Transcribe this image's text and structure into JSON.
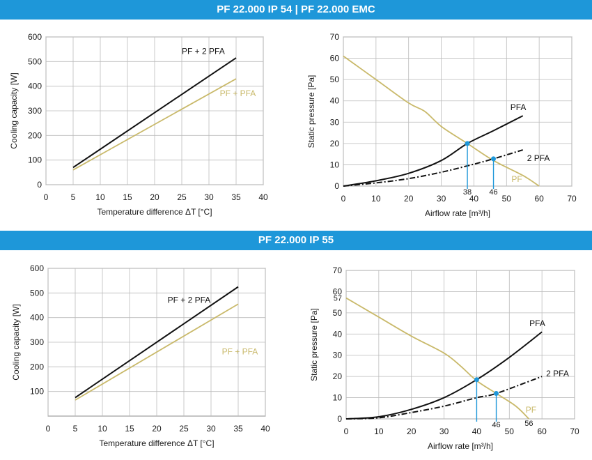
{
  "sections": {
    "top_title": "PF 22.000 IP 54 | PF 22.000 EMC",
    "bottom_title": "PF 22.000 IP 55"
  },
  "colors": {
    "banner": "#1e97d9",
    "pf2pfa": "#111111",
    "pfpfa": "#c9b96a",
    "pf_curve": "#c9b96a",
    "marker": "#1e97d9",
    "grid": "#bbbbbb"
  },
  "chart_data": [
    {
      "type": "line",
      "ylabel": "Cooling capacity [W]",
      "xlabel": "Temperature difference ΔT [°C]",
      "xlim": [
        0,
        40
      ],
      "ylim": [
        0,
        600
      ],
      "xticks": [
        "0",
        "5",
        "10",
        "15",
        "20",
        "25",
        "30",
        "35",
        "40"
      ],
      "yticks": [
        "0",
        "100",
        "200",
        "300",
        "400",
        "500",
        "600"
      ],
      "grid": true,
      "series": [
        {
          "name": "PF + 2 PFA",
          "x": [
            5,
            35
          ],
          "y": [
            70,
            515
          ]
        },
        {
          "name": "PF + PFA",
          "x": [
            5,
            35
          ],
          "y": [
            60,
            430
          ]
        }
      ]
    },
    {
      "type": "line",
      "ylabel": "Static pressure [Pa]",
      "xlabel": "Airflow rate [m³/h]",
      "xlim": [
        0,
        70
      ],
      "ylim": [
        0,
        70
      ],
      "xticks": [
        "0",
        "10",
        "20",
        "30",
        "40",
        "50",
        "60",
        "70"
      ],
      "yticks": [
        "0",
        "10",
        "20",
        "30",
        "40",
        "50",
        "60",
        "70"
      ],
      "grid": true,
      "series": [
        {
          "name": "PF",
          "x": [
            0,
            10,
            20,
            25,
            30,
            38,
            46,
            55,
            60
          ],
          "y": [
            61,
            50,
            39,
            35,
            28,
            20,
            12,
            5,
            0
          ]
        },
        {
          "name": "PFA",
          "x": [
            0,
            10,
            20,
            30,
            38,
            46,
            55
          ],
          "y": [
            0,
            2.5,
            6,
            12,
            20,
            26,
            33
          ]
        },
        {
          "name": "2 PFA",
          "x": [
            0,
            10,
            20,
            30,
            38,
            46,
            55
          ],
          "y": [
            0,
            1.5,
            3.5,
            6.5,
            9.5,
            12.8,
            17
          ]
        }
      ],
      "markers": [
        {
          "x": 38,
          "y": 20,
          "label": "38"
        },
        {
          "x": 46,
          "y": 12.8,
          "label": "46"
        }
      ]
    },
    {
      "type": "line",
      "ylabel": "Cooling capacity [W]",
      "xlabel": "Temperature difference ΔT [°C]",
      "xlim": [
        0,
        40
      ],
      "ylim": [
        0,
        600
      ],
      "xticks": [
        "0",
        "5",
        "10",
        "15",
        "20",
        "25",
        "30",
        "35",
        "40"
      ],
      "yticks": [
        "100",
        "200",
        "300",
        "400",
        "500",
        "600"
      ],
      "grid": true,
      "series": [
        {
          "name": "PF + 2 PFA",
          "x": [
            5,
            35
          ],
          "y": [
            75,
            525
          ]
        },
        {
          "name": "PF + PFA",
          "x": [
            5,
            35
          ],
          "y": [
            65,
            455
          ]
        }
      ]
    },
    {
      "type": "line",
      "ylabel": "Static pressure [Pa]",
      "xlabel": "Airflow rate [m³/h]",
      "xlim": [
        0,
        70
      ],
      "ylim": [
        0,
        70
      ],
      "xticks": [
        "0",
        "10",
        "20",
        "30",
        "40",
        "50",
        "60",
        "70"
      ],
      "yticks": [
        "0",
        "10",
        "20",
        "30",
        "40",
        "50",
        "60",
        "70"
      ],
      "extra_ytick": "57",
      "grid": true,
      "series": [
        {
          "name": "PF",
          "x": [
            0,
            10,
            20,
            30,
            35,
            40,
            46,
            52,
            56
          ],
          "y": [
            57,
            48,
            39,
            31,
            25,
            18,
            12,
            6,
            0
          ]
        },
        {
          "name": "PFA",
          "x": [
            0,
            10,
            20,
            30,
            40,
            50,
            60
          ],
          "y": [
            0,
            1,
            4.5,
            10,
            18.5,
            29,
            41
          ]
        },
        {
          "name": "2 PFA",
          "x": [
            0,
            10,
            20,
            30,
            40,
            46,
            60
          ],
          "y": [
            0,
            0.5,
            3,
            6,
            10,
            12,
            20
          ]
        }
      ],
      "markers": [
        {
          "x": 40,
          "y": 18.5,
          "label": ""
        },
        {
          "x": 46,
          "y": 12,
          "label": "46"
        }
      ],
      "end_label": "56"
    }
  ]
}
